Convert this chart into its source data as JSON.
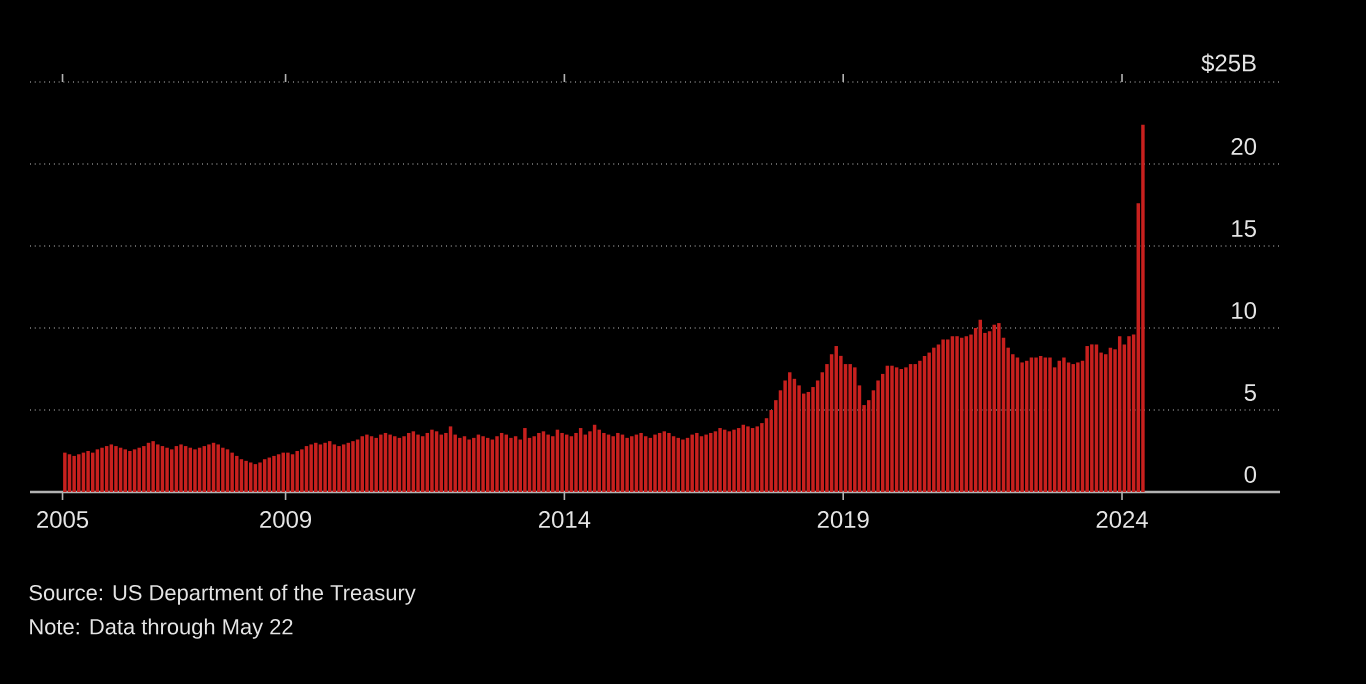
{
  "chart_data": {
    "type": "bar",
    "x": [
      "2005-01",
      "2005-02",
      "2005-03",
      "2005-04",
      "2005-05",
      "2005-06",
      "2005-07",
      "2005-08",
      "2005-09",
      "2005-10",
      "2005-11",
      "2005-12",
      "2006-01",
      "2006-02",
      "2006-03",
      "2006-04",
      "2006-05",
      "2006-06",
      "2006-07",
      "2006-08",
      "2006-09",
      "2006-10",
      "2006-11",
      "2006-12",
      "2007-01",
      "2007-02",
      "2007-03",
      "2007-04",
      "2007-05",
      "2007-06",
      "2007-07",
      "2007-08",
      "2007-09",
      "2007-10",
      "2007-11",
      "2007-12",
      "2008-01",
      "2008-02",
      "2008-03",
      "2008-04",
      "2008-05",
      "2008-06",
      "2008-07",
      "2008-08",
      "2008-09",
      "2008-10",
      "2008-11",
      "2008-12",
      "2009-01",
      "2009-02",
      "2009-03",
      "2009-04",
      "2009-05",
      "2009-06",
      "2009-07",
      "2009-08",
      "2009-09",
      "2009-10",
      "2009-11",
      "2009-12",
      "2010-01",
      "2010-02",
      "2010-03",
      "2010-04",
      "2010-05",
      "2010-06",
      "2010-07",
      "2010-08",
      "2010-09",
      "2010-10",
      "2010-11",
      "2010-12",
      "2011-01",
      "2011-02",
      "2011-03",
      "2011-04",
      "2011-05",
      "2011-06",
      "2011-07",
      "2011-08",
      "2011-09",
      "2011-10",
      "2011-11",
      "2011-12",
      "2012-01",
      "2012-02",
      "2012-03",
      "2012-04",
      "2012-05",
      "2012-06",
      "2012-07",
      "2012-08",
      "2012-09",
      "2012-10",
      "2012-11",
      "2012-12",
      "2013-01",
      "2013-02",
      "2013-03",
      "2013-04",
      "2013-05",
      "2013-06",
      "2013-07",
      "2013-08",
      "2013-09",
      "2013-10",
      "2013-11",
      "2013-12",
      "2014-01",
      "2014-02",
      "2014-03",
      "2014-04",
      "2014-05",
      "2014-06",
      "2014-07",
      "2014-08",
      "2014-09",
      "2014-10",
      "2014-11",
      "2014-12",
      "2015-01",
      "2015-02",
      "2015-03",
      "2015-04",
      "2015-05",
      "2015-06",
      "2015-07",
      "2015-08",
      "2015-09",
      "2015-10",
      "2015-11",
      "2015-12",
      "2016-01",
      "2016-02",
      "2016-03",
      "2016-04",
      "2016-05",
      "2016-06",
      "2016-07",
      "2016-08",
      "2016-09",
      "2016-10",
      "2016-11",
      "2016-12",
      "2017-01",
      "2017-02",
      "2017-03",
      "2017-04",
      "2017-05",
      "2017-06",
      "2017-07",
      "2017-08",
      "2017-09",
      "2017-10",
      "2017-11",
      "2017-12",
      "2018-01",
      "2018-02",
      "2018-03",
      "2018-04",
      "2018-05",
      "2018-06",
      "2018-07",
      "2018-08",
      "2018-09",
      "2018-10",
      "2018-11",
      "2018-12",
      "2019-01",
      "2019-02",
      "2019-03",
      "2019-04",
      "2019-05",
      "2019-06",
      "2019-07",
      "2019-08",
      "2019-09",
      "2019-10",
      "2019-11",
      "2019-12",
      "2020-01",
      "2020-02",
      "2020-03",
      "2020-04",
      "2020-05",
      "2020-06",
      "2020-07",
      "2020-08",
      "2020-09",
      "2020-10",
      "2020-11",
      "2020-12",
      "2021-01",
      "2021-02",
      "2021-03",
      "2021-04",
      "2021-05",
      "2021-06",
      "2021-07",
      "2021-08",
      "2021-09",
      "2021-10",
      "2021-11",
      "2021-12",
      "2022-01",
      "2022-02",
      "2022-03",
      "2022-04",
      "2022-05",
      "2022-06",
      "2022-07",
      "2022-08",
      "2022-09",
      "2022-10",
      "2022-11",
      "2022-12",
      "2023-01",
      "2023-02",
      "2023-03",
      "2023-04",
      "2023-05",
      "2023-06",
      "2023-07",
      "2023-08",
      "2023-09",
      "2023-10",
      "2023-11",
      "2023-12",
      "2024-01",
      "2024-02",
      "2024-03",
      "2024-04",
      "2024-05"
    ],
    "values": [
      2.4,
      2.3,
      2.2,
      2.3,
      2.4,
      2.5,
      2.4,
      2.6,
      2.7,
      2.8,
      2.9,
      2.8,
      2.7,
      2.6,
      2.5,
      2.6,
      2.7,
      2.8,
      3.0,
      3.1,
      2.9,
      2.8,
      2.7,
      2.6,
      2.8,
      2.9,
      2.8,
      2.7,
      2.6,
      2.7,
      2.8,
      2.9,
      3.0,
      2.9,
      2.7,
      2.6,
      2.4,
      2.2,
      2.0,
      1.9,
      1.8,
      1.7,
      1.8,
      2.0,
      2.1,
      2.2,
      2.3,
      2.4,
      2.4,
      2.3,
      2.5,
      2.6,
      2.8,
      2.9,
      3.0,
      2.9,
      3.0,
      3.1,
      2.9,
      2.8,
      2.9,
      3.0,
      3.1,
      3.2,
      3.4,
      3.5,
      3.4,
      3.3,
      3.5,
      3.6,
      3.5,
      3.4,
      3.3,
      3.4,
      3.6,
      3.7,
      3.5,
      3.4,
      3.6,
      3.8,
      3.7,
      3.5,
      3.6,
      4.0,
      3.5,
      3.3,
      3.4,
      3.2,
      3.3,
      3.5,
      3.4,
      3.3,
      3.2,
      3.4,
      3.6,
      3.5,
      3.3,
      3.4,
      3.2,
      3.9,
      3.3,
      3.4,
      3.6,
      3.7,
      3.5,
      3.4,
      3.8,
      3.6,
      3.5,
      3.4,
      3.6,
      3.9,
      3.5,
      3.7,
      4.1,
      3.8,
      3.6,
      3.5,
      3.4,
      3.6,
      3.5,
      3.3,
      3.4,
      3.5,
      3.6,
      3.4,
      3.3,
      3.5,
      3.6,
      3.7,
      3.6,
      3.4,
      3.3,
      3.2,
      3.3,
      3.5,
      3.6,
      3.4,
      3.5,
      3.6,
      3.7,
      3.9,
      3.8,
      3.7,
      3.8,
      3.9,
      4.1,
      4.0,
      3.9,
      4.0,
      4.2,
      4.5,
      5.0,
      5.6,
      6.2,
      6.8,
      7.3,
      6.9,
      6.5,
      6.0,
      6.1,
      6.4,
      6.8,
      7.3,
      7.8,
      8.4,
      8.9,
      8.3,
      7.8,
      7.8,
      7.6,
      6.5,
      5.3,
      5.6,
      6.2,
      6.8,
      7.2,
      7.7,
      7.7,
      7.6,
      7.5,
      7.6,
      7.8,
      7.8,
      8.0,
      8.3,
      8.5,
      8.8,
      9.0,
      9.3,
      9.3,
      9.5,
      9.5,
      9.4,
      9.5,
      9.6,
      10.0,
      10.5,
      9.7,
      9.8,
      10.2,
      10.3,
      9.4,
      8.8,
      8.4,
      8.2,
      7.9,
      8.0,
      8.2,
      8.2,
      8.3,
      8.2,
      8.2,
      7.6,
      8.0,
      8.2,
      7.9,
      7.8,
      7.9,
      8.0,
      8.9,
      9.0,
      9.0,
      8.5,
      8.4,
      8.8,
      8.7,
      9.5,
      9.0,
      9.5,
      9.6,
      17.6,
      22.4
    ],
    "color": "#c8201e",
    "xlim": [
      "2004-06",
      "2026-11"
    ],
    "xticks": [
      "2005",
      "2009",
      "2014",
      "2019",
      "2024"
    ],
    "ylim": [
      0,
      25
    ],
    "yticks": [
      0,
      5,
      10,
      15,
      20,
      {
        "value": 25,
        "label": "$25B"
      }
    ],
    "grid": "y",
    "annotations": [
      "Source: US Department of the Treasury",
      "Note: Data through May 22"
    ]
  }
}
